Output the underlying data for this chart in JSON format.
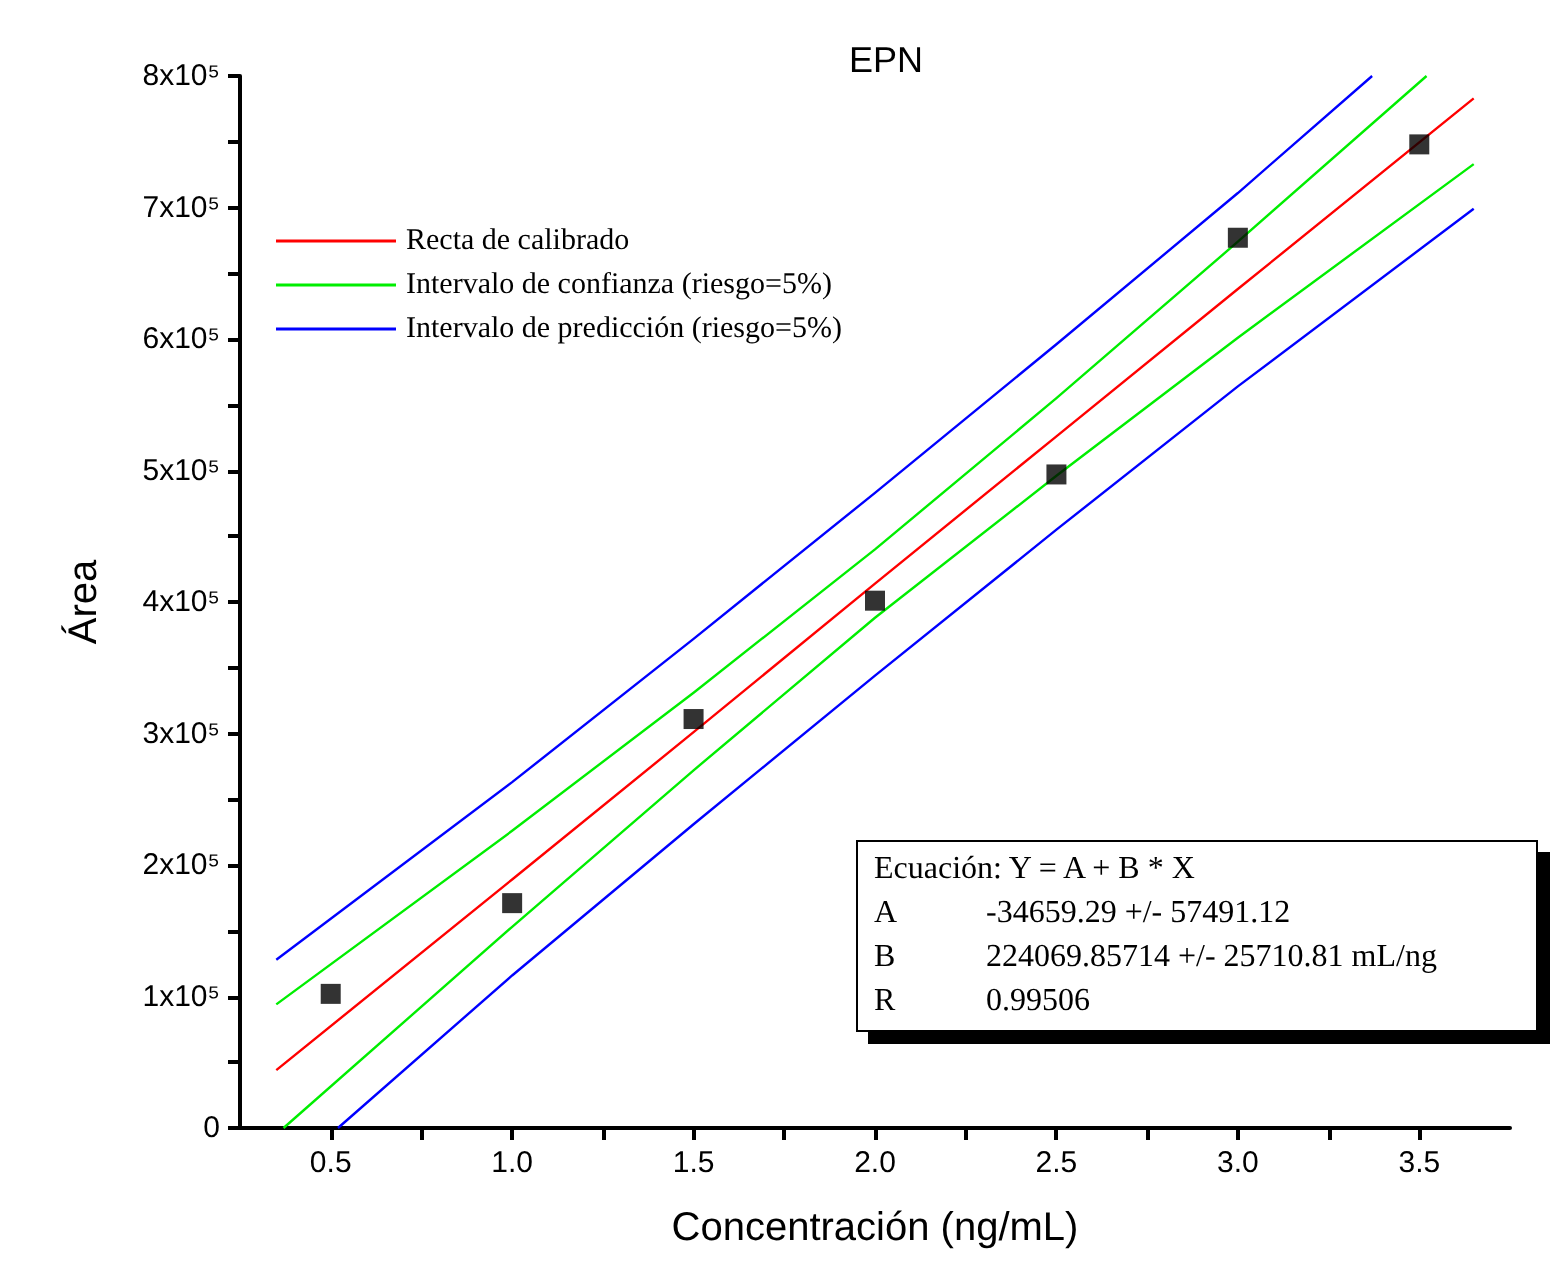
{
  "chart_data": {
    "type": "scatter",
    "title": "EPN",
    "xlabel": "Concentración (ng/mL)",
    "ylabel": "Área",
    "xlim": [
      0.25,
      3.75
    ],
    "xticks": [
      {
        "value": 0.5,
        "label": "0.5"
      },
      {
        "value": 0.75,
        "label": null
      },
      {
        "value": 1,
        "label": "1.0"
      },
      {
        "value": 1.25,
        "label": null
      },
      {
        "value": 1.5,
        "label": "1.5"
      },
      {
        "value": 1.75,
        "label": null
      },
      {
        "value": 2,
        "label": "2.0"
      },
      {
        "value": 2.25,
        "label": null
      },
      {
        "value": 2.5,
        "label": "2.5"
      },
      {
        "value": 2.75,
        "label": null
      },
      {
        "value": 3,
        "label": "3.0"
      },
      {
        "value": 3.25,
        "label": null
      },
      {
        "value": 3.5,
        "label": "3.5"
      }
    ],
    "ylim": [
      0,
      800000
    ],
    "yticks": [
      {
        "value": 0,
        "label": "0"
      },
      {
        "value": 50000,
        "label": null
      },
      {
        "value": 100000,
        "label": "1x10⁵"
      },
      {
        "value": 150000,
        "label": null
      },
      {
        "value": 200000,
        "label": "2x10⁵"
      },
      {
        "value": 250000,
        "label": null
      },
      {
        "value": 300000,
        "label": "3x10⁵"
      },
      {
        "value": 350000,
        "label": null
      },
      {
        "value": 400000,
        "label": "4x10⁵"
      },
      {
        "value": 450000,
        "label": null
      },
      {
        "value": 500000,
        "label": "5x10⁵"
      },
      {
        "value": 550000,
        "label": null
      },
      {
        "value": 600000,
        "label": "6x10⁵"
      },
      {
        "value": 650000,
        "label": null
      },
      {
        "value": 700000,
        "label": "7x10⁵"
      },
      {
        "value": 750000,
        "label": null
      },
      {
        "value": 800000,
        "label": "8x10⁵"
      }
    ],
    "x": [
      0.5,
      1,
      1.5,
      2,
      2.5,
      3,
      3.5
    ],
    "grid": false,
    "legend": "top left",
    "line_style": "solid",
    "series": [
      {
        "color": "#000000",
        "marker": "square",
        "values": [
          102000,
          171000,
          311000,
          401000,
          497000,
          677000,
          748000
        ]
      },
      {
        "type": "line",
        "name": "Recta de calibrado",
        "color": "#ff0000",
        "marker": "none",
        "x": [
          0.35,
          1,
          1.5,
          2,
          2.5,
          3,
          3.65
        ],
        "values": [
          44000,
          189000,
          301000,
          414000,
          526000,
          638000,
          783000
        ]
      },
      {
        "type": "line",
        "name": "Intervalo de confianza (riesgo=5%)",
        "color": "#00ee00",
        "marker": "none",
        "x": [
          0.35,
          1,
          1.5,
          2,
          2.5,
          3,
          3.52
        ],
        "values": [
          94000,
          226000,
          331000,
          440000,
          555000,
          674000,
          800000
        ]
      },
      {
        "type": "line",
        "color": "#00ee00",
        "marker": "none",
        "x": [
          0.37,
          1,
          1.5,
          2,
          2.5,
          3,
          3.65
        ],
        "values": [
          0,
          153000,
          272000,
          388000,
          496000,
          601000,
          733000
        ]
      },
      {
        "type": "line",
        "name": "Intervalo de predicción (riesgo=5%)",
        "color": "#0000ff",
        "marker": "none",
        "x": [
          0.35,
          1,
          1.5,
          2,
          2.5,
          3,
          3.37
        ],
        "values": [
          128000,
          263000,
          372000,
          483000,
          596000,
          711000,
          800000
        ]
      },
      {
        "type": "line",
        "color": "#0000ff",
        "marker": "none",
        "x": [
          0.52,
          1,
          1.5,
          2,
          2.5,
          3,
          3.65
        ],
        "values": [
          0,
          116000,
          231000,
          344000,
          455000,
          564000,
          699000
        ]
      }
    ],
    "annotations": [
      "Ecuación: Y = A + B * X",
      "A",
      "-34659.29 +/- 57491.12",
      "B",
      "224069.85714 +/- 25710.81 mL/ng",
      "R",
      "0.99506"
    ]
  }
}
